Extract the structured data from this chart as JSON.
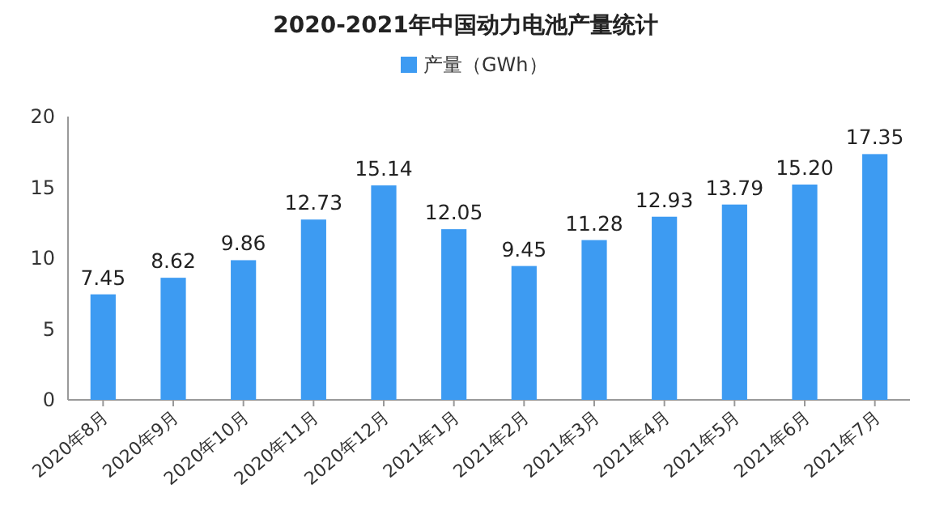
{
  "chart_data": {
    "type": "bar",
    "title": "2020-2021年中国动力电池产量统计",
    "categories": [
      "2020年8月",
      "2020年9月",
      "2020年10月",
      "2020年11月",
      "2020年12月",
      "2021年1月",
      "2021年2月",
      "2021年3月",
      "2021年4月",
      "2021年5月",
      "2021年6月",
      "2021年7月"
    ],
    "series": [
      {
        "name": "产量（GWh）",
        "color": "#3d9bf2",
        "values": [
          7.45,
          8.62,
          9.86,
          12.73,
          15.14,
          12.05,
          9.45,
          11.28,
          12.93,
          13.79,
          15.2,
          17.35
        ]
      }
    ],
    "value_labels": [
      "7.45",
      "8.62",
      "9.86",
      "12.73",
      "15.14",
      "12.05",
      "9.45",
      "11.28",
      "12.93",
      "13.79",
      "15.20",
      "17.35"
    ],
    "ylim": [
      0,
      20
    ],
    "yticks": [
      0,
      5,
      10,
      15,
      20
    ],
    "grid": false,
    "legend": "top"
  }
}
